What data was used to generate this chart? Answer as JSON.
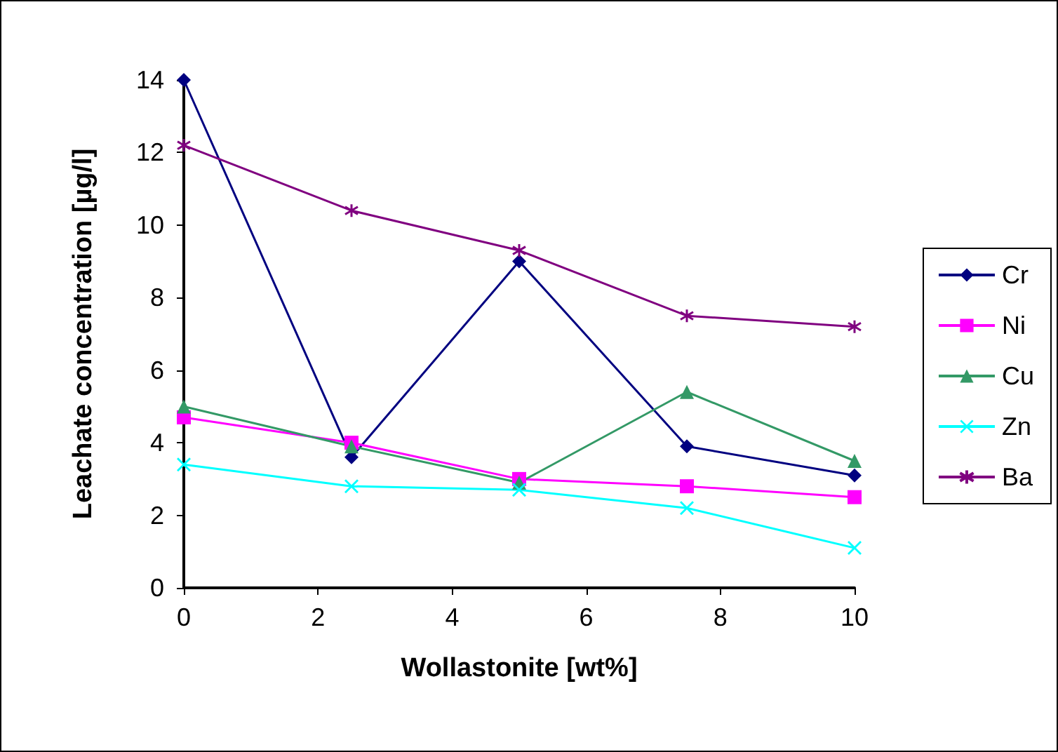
{
  "chart_data": {
    "type": "line",
    "xlabel": "Wollastonite [wt%]",
    "ylabel": "Leachate concentration [µg/l]",
    "x": [
      0,
      2.5,
      5,
      7.5,
      10
    ],
    "series": [
      {
        "name": "Cr",
        "color": "#000080",
        "marker": "diamond",
        "values": [
          14,
          3.6,
          9.0,
          3.9,
          3.1
        ]
      },
      {
        "name": "Ni",
        "color": "#ff00ff",
        "marker": "square",
        "values": [
          4.7,
          4.0,
          3.0,
          2.8,
          2.5
        ]
      },
      {
        "name": "Cu",
        "color": "#339966",
        "marker": "triangle",
        "values": [
          5.0,
          3.9,
          2.9,
          5.4,
          3.5
        ]
      },
      {
        "name": "Zn",
        "color": "#00ffff",
        "marker": "cross",
        "values": [
          3.4,
          2.8,
          2.7,
          2.2,
          1.1
        ]
      },
      {
        "name": "Ba",
        "color": "#800080",
        "marker": "star",
        "values": [
          12.2,
          10.4,
          9.3,
          7.5,
          7.2
        ]
      }
    ],
    "xlim": [
      0,
      10
    ],
    "xticks": [
      0,
      2,
      4,
      6,
      8,
      10
    ],
    "ylim": [
      0,
      14
    ],
    "yticks": [
      0,
      2,
      4,
      6,
      8,
      10,
      12,
      14
    ],
    "grid": false,
    "legend": "right"
  }
}
